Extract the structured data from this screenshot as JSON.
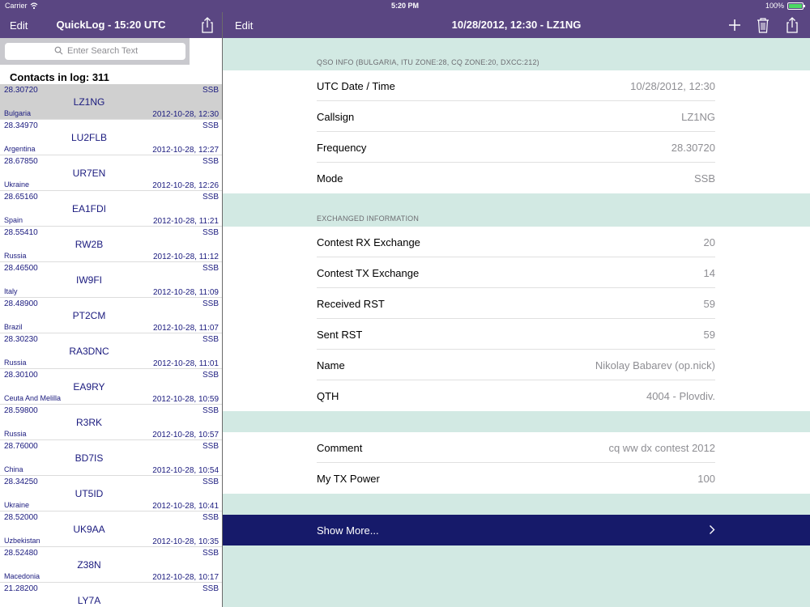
{
  "status_bar": {
    "carrier": "Carrier",
    "time": "5:20 PM",
    "battery": "100%"
  },
  "left_nav": {
    "edit": "Edit",
    "title": "QuickLog - 15:20 UTC"
  },
  "right_nav": {
    "edit": "Edit",
    "title": "10/28/2012, 12:30 - LZ1NG"
  },
  "search": {
    "placeholder": "Enter Search Text"
  },
  "contacts_label": "Contacts in log: 311",
  "contacts": [
    {
      "freq": "28.30720",
      "mode": "SSB",
      "call": "LZ1NG",
      "country": "Bulgaria",
      "datetime": "2012-10-28, 12:30"
    },
    {
      "freq": "28.34970",
      "mode": "SSB",
      "call": "LU2FLB",
      "country": "Argentina",
      "datetime": "2012-10-28, 12:27"
    },
    {
      "freq": "28.67850",
      "mode": "SSB",
      "call": "UR7EN",
      "country": "Ukraine",
      "datetime": "2012-10-28, 12:26"
    },
    {
      "freq": "28.65160",
      "mode": "SSB",
      "call": "EA1FDI",
      "country": "Spain",
      "datetime": "2012-10-28, 11:21"
    },
    {
      "freq": "28.55410",
      "mode": "SSB",
      "call": "RW2B",
      "country": "Russia",
      "datetime": "2012-10-28, 11:12"
    },
    {
      "freq": "28.46500",
      "mode": "SSB",
      "call": "IW9FI",
      "country": "Italy",
      "datetime": "2012-10-28, 11:09"
    },
    {
      "freq": "28.48900",
      "mode": "SSB",
      "call": "PT2CM",
      "country": "Brazil",
      "datetime": "2012-10-28, 11:07"
    },
    {
      "freq": "28.30230",
      "mode": "SSB",
      "call": "RA3DNC",
      "country": "Russia",
      "datetime": "2012-10-28, 11:01"
    },
    {
      "freq": "28.30100",
      "mode": "SSB",
      "call": "EA9RY",
      "country": "Ceuta And Melilla",
      "datetime": "2012-10-28, 10:59"
    },
    {
      "freq": "28.59800",
      "mode": "SSB",
      "call": "R3RK",
      "country": "Russia",
      "datetime": "2012-10-28, 10:57"
    },
    {
      "freq": "28.76000",
      "mode": "SSB",
      "call": "BD7IS",
      "country": "China",
      "datetime": "2012-10-28, 10:54"
    },
    {
      "freq": "28.34250",
      "mode": "SSB",
      "call": "UT5ID",
      "country": "Ukraine",
      "datetime": "2012-10-28, 10:41"
    },
    {
      "freq": "28.52000",
      "mode": "SSB",
      "call": "UK9AA",
      "country": "Uzbekistan",
      "datetime": "2012-10-28, 10:35"
    },
    {
      "freq": "28.52480",
      "mode": "SSB",
      "call": "Z38N",
      "country": "Macedonia",
      "datetime": "2012-10-28, 10:17"
    },
    {
      "freq": "21.28200",
      "mode": "SSB",
      "call": "LY7A",
      "country": "",
      "datetime": ""
    }
  ],
  "detail": {
    "qso_header": "QSO INFO (BULGARIA, ITU ZONE:28, CQ ZONE:20, DXCC:212)",
    "qso_rows": [
      {
        "label": "UTC Date / Time",
        "value": "10/28/2012, 12:30"
      },
      {
        "label": "Callsign",
        "value": "LZ1NG"
      },
      {
        "label": "Frequency",
        "value": "28.30720"
      },
      {
        "label": "Mode",
        "value": "SSB"
      }
    ],
    "exchange_header": "EXCHANGED INFORMATION",
    "exchange_rows": [
      {
        "label": "Contest RX Exchange",
        "value": "20"
      },
      {
        "label": "Contest TX Exchange",
        "value": "14"
      },
      {
        "label": "Received RST",
        "value": "59"
      },
      {
        "label": "Sent RST",
        "value": "59"
      },
      {
        "label": "Name",
        "value": "Nikolay Babarev (op.nick)"
      },
      {
        "label": "QTH",
        "value": "4004 - Plovdiv."
      }
    ],
    "misc_rows": [
      {
        "label": "Comment",
        "value": "cq ww dx contest 2012"
      },
      {
        "label": "My TX Power",
        "value": "100"
      }
    ],
    "show_more": "Show More..."
  },
  "colors": {
    "nav": "#5a4682",
    "background": "#d2e9e3",
    "show_more": "#161a6a",
    "list_text": "#1a1a7e",
    "selected_row": "#d0d0d0"
  },
  "icons": [
    "wifi-icon",
    "share-icon",
    "search-icon",
    "add-icon",
    "trash-icon",
    "chevron-right-icon"
  ]
}
